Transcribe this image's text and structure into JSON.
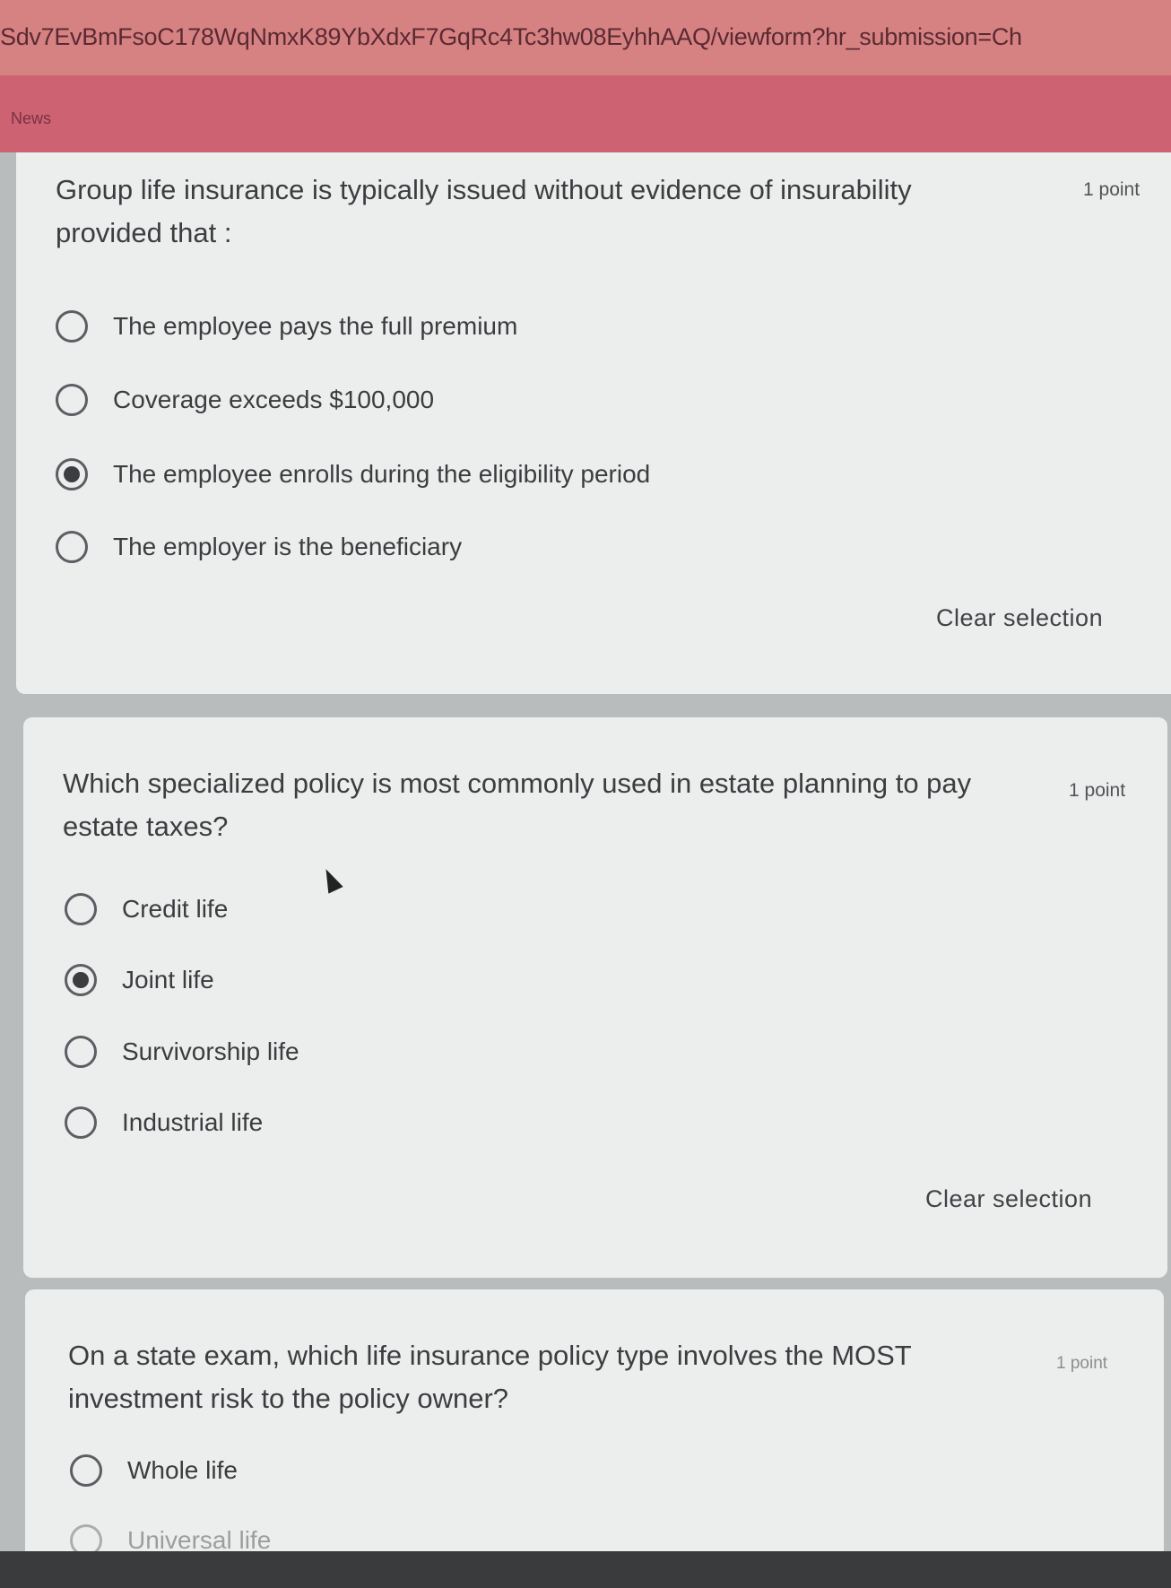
{
  "browser": {
    "url": "Sdv7EvBmFsoC178WqNmxK89YbXdxF7GqRc4Tc3hw08EyhhAAQ/viewform?hr_submission=Ch"
  },
  "header": {
    "title": "News"
  },
  "questions": [
    {
      "text": "Group life insurance is typically issued without evidence of insurability provided that :",
      "points": "1 point",
      "options": [
        "The employee pays the full premium",
        "Coverage exceeds $100,000",
        "The employee enrolls during the eligibility period",
        "The employer is the beneficiary"
      ],
      "selected_index": 2,
      "clear_label": "Clear selection"
    },
    {
      "text": "Which specialized policy is most commonly used in estate planning to pay estate taxes?",
      "points": "1 point",
      "options": [
        "Credit life",
        "Joint life",
        "Survivorship life",
        "Industrial life"
      ],
      "selected_index": 1,
      "clear_label": "Clear selection"
    },
    {
      "text": "On a state exam, which life insurance policy type involves the MOST investment risk to the policy owner?",
      "points": "1 point",
      "options": [
        "Whole life",
        "Universal life"
      ],
      "selected_index": null
    }
  ],
  "colors": {
    "header": "#cd6372",
    "urlbar": "#d78282",
    "card": "#eceeed"
  }
}
